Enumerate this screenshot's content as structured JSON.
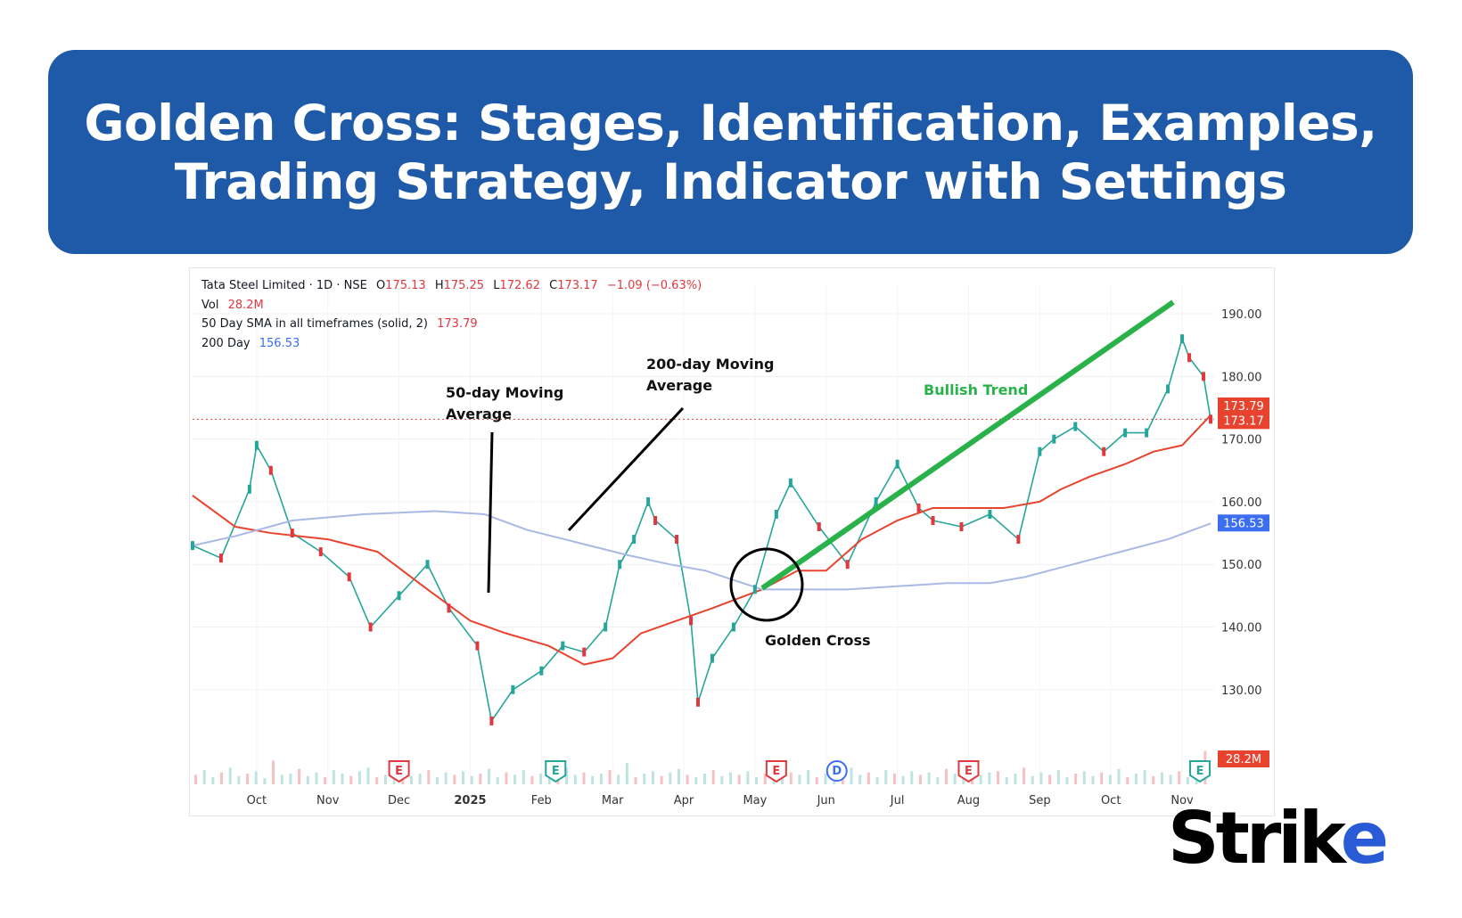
{
  "banner": {
    "line1": "Golden Cross: Stages, Identification, Examples,",
    "line2": "Trading Strategy, Indicator with Settings"
  },
  "legend": {
    "symbol": "Tata Steel Limited · 1D · NSE",
    "o_label": "O",
    "o": "175.13",
    "h_label": "H",
    "h": "175.25",
    "l_label": "L",
    "l": "172.62",
    "c_label": "C",
    "c": "173.17",
    "change": "−1.09 (−0.63%)",
    "vol_label": "Vol",
    "vol": "28.2M",
    "sma50_label": "50 Day SMA in all timeframes (solid, 2)",
    "sma50": "173.79",
    "sma200_label": "200 Day",
    "sma200": "156.53"
  },
  "brand": {
    "prefix": "Strik",
    "suffix": "e"
  },
  "chart_data": {
    "type": "line",
    "title": "",
    "ylim": [
      122,
      192
    ],
    "y_ticks": [
      190,
      180,
      170,
      160,
      150,
      140,
      130
    ],
    "y_tick_labels": [
      "190.00",
      "180.00",
      "170.00",
      "160.00",
      "150.00",
      "140.00",
      "130.00"
    ],
    "x_tick_labels": [
      "Oct",
      "Nov",
      "Dec",
      "2025",
      "Feb",
      "Mar",
      "Apr",
      "May",
      "Jun",
      "Jul",
      "Aug",
      "Sep",
      "Oct",
      "Nov"
    ],
    "x_tick_positions": [
      1.0,
      2.0,
      3.0,
      4.0,
      5.0,
      6.0,
      7.0,
      8.0,
      9.0,
      10.0,
      11.0,
      12.0,
      13.0,
      14.0
    ],
    "xlim": [
      0.1,
      14.45
    ],
    "series": [
      {
        "name": "Price",
        "color": "#26a69a",
        "x": [
          0.1,
          0.5,
          0.9,
          1.0,
          1.2,
          1.5,
          1.9,
          2.3,
          2.6,
          3.0,
          3.4,
          3.7,
          4.1,
          4.3,
          4.6,
          5.0,
          5.3,
          5.6,
          5.9,
          6.1,
          6.3,
          6.5,
          6.6,
          6.9,
          7.1,
          7.2,
          7.4,
          7.7,
          8.0,
          8.3,
          8.5,
          8.9,
          9.3,
          9.7,
          10.0,
          10.3,
          10.5,
          10.9,
          11.3,
          11.7,
          12.0,
          12.2,
          12.5,
          12.9,
          13.2,
          13.5,
          13.8,
          14.0,
          14.1,
          14.3,
          14.4
        ],
        "y": [
          153,
          151,
          162,
          169,
          165,
          155,
          152,
          148,
          140,
          145,
          150,
          143,
          137,
          125,
          130,
          133,
          137,
          136,
          140,
          150,
          154,
          160,
          157,
          154,
          141,
          128,
          135,
          140,
          146,
          158,
          163,
          156,
          150,
          160,
          166,
          159,
          157,
          156,
          158,
          154,
          168,
          170,
          172,
          168,
          171,
          171,
          178,
          186,
          183,
          180,
          173.17
        ]
      },
      {
        "name": "50 Day SMA",
        "color": "#e8432e",
        "x": [
          0.1,
          0.7,
          1.2,
          2.0,
          2.7,
          3.4,
          4.0,
          4.5,
          5.1,
          5.6,
          6.0,
          6.4,
          6.9,
          7.4,
          8.1,
          8.6,
          9.0,
          9.5,
          10.0,
          10.5,
          11.0,
          11.5,
          12.0,
          12.3,
          12.7,
          13.2,
          13.6,
          14.0,
          14.4
        ],
        "y": [
          161,
          156,
          155,
          154,
          152,
          146,
          141,
          139,
          137,
          134,
          135,
          139,
          141,
          143,
          146,
          149,
          149,
          154,
          157,
          159,
          159,
          159,
          160,
          162,
          164,
          166,
          168,
          169,
          173.79
        ]
      },
      {
        "name": "200 Day",
        "color": "#aab8e6",
        "x": [
          0.1,
          0.7,
          1.5,
          2.5,
          3.5,
          4.2,
          4.8,
          5.5,
          6.2,
          6.8,
          7.3,
          7.7,
          8.1,
          8.7,
          9.3,
          10.0,
          10.7,
          11.3,
          11.8,
          12.3,
          12.8,
          13.3,
          13.8,
          14.4
        ],
        "y": [
          153,
          154.5,
          157,
          158,
          158.5,
          158,
          155.5,
          153.5,
          151.5,
          150,
          149,
          147.5,
          146,
          146,
          146,
          146.5,
          147,
          147,
          148,
          149.5,
          151,
          152.5,
          154,
          156.53
        ]
      }
    ],
    "volume": {
      "ylim": [
        0,
        120
      ],
      "values": [
        8,
        12,
        6,
        10,
        14,
        7,
        9,
        11,
        5,
        20,
        8,
        9,
        13,
        7,
        10,
        6,
        12,
        9,
        7,
        11,
        14,
        6,
        8,
        10,
        15,
        7,
        9,
        12,
        6,
        10,
        8,
        11,
        7,
        9,
        13,
        6,
        10,
        8,
        12,
        7,
        9,
        11,
        6,
        14,
        8,
        10,
        7,
        9,
        12,
        8,
        18,
        6,
        9,
        11,
        7,
        10,
        13,
        8,
        6,
        9,
        12,
        7,
        10,
        8,
        11,
        6,
        9,
        13,
        7,
        10,
        8,
        12,
        6,
        9,
        11,
        7,
        14,
        8,
        10,
        6,
        12,
        9,
        7,
        11,
        8,
        10,
        6,
        13,
        9,
        7,
        12,
        8,
        10,
        11,
        6,
        9,
        14,
        7,
        10,
        8,
        12,
        6,
        9,
        11,
        7,
        10,
        8,
        13,
        6,
        9,
        12,
        7,
        10,
        8,
        11,
        6,
        9,
        28
      ]
    },
    "price_labels": [
      {
        "value": 173.79,
        "text": "173.79",
        "color": "#e8432e"
      },
      {
        "value": 173.17,
        "text": "173.17",
        "color": "#e8432e"
      },
      {
        "value": 156.53,
        "text": "156.53",
        "color": "#3b6ef0"
      },
      {
        "value": "volume",
        "text": "28.2M",
        "color": "#e8432e"
      }
    ],
    "annotations": [
      {
        "text_line1": "50-day Moving",
        "text_line2": "Average"
      },
      {
        "text_line1": "200-day Moving",
        "text_line2": "Average"
      },
      {
        "text_line1": "Bullish Trend",
        "color": "#2ab24a"
      },
      {
        "text_line1": "Golden Cross"
      }
    ],
    "event_markers": [
      {
        "x": 3.0,
        "label": "E",
        "color": "#e0383e"
      },
      {
        "x": 5.2,
        "label": "E",
        "color": "#26a69a"
      },
      {
        "x": 8.3,
        "label": "E",
        "color": "#e0383e"
      },
      {
        "x": 9.15,
        "label": "D",
        "color": "#3b6ef0"
      },
      {
        "x": 11.0,
        "label": "E",
        "color": "#e0383e"
      },
      {
        "x": 14.25,
        "label": "E",
        "color": "#26a69a"
      }
    ]
  }
}
